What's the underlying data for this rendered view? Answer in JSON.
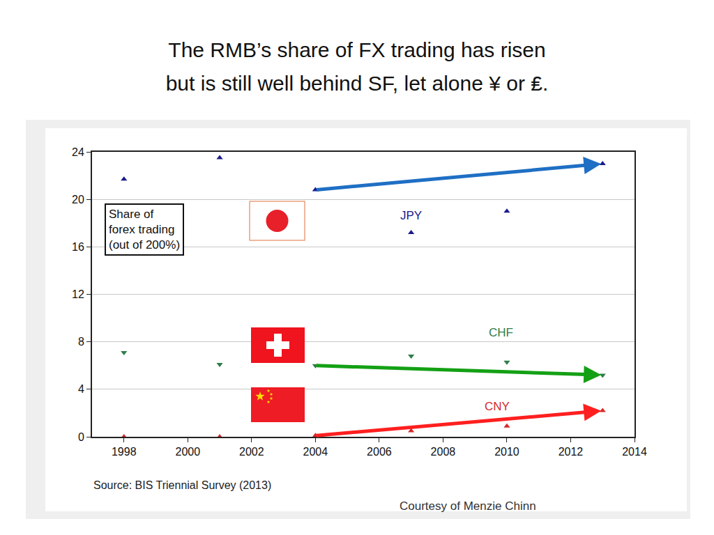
{
  "slide": {
    "title": [
      "The RMB’s share of FX trading has risen",
      "but is still well behind SF, let alone ¥ or ₤."
    ],
    "credit": "Courtesy of Menzie Chinn"
  },
  "chart_data": {
    "type": "scatter",
    "ylabel": "Share of\nforex trading\n(out of 200%)",
    "source": "Source: BIS Triennial Survey (2013)",
    "x": [
      1998,
      2001,
      2004,
      2007,
      2010,
      2013
    ],
    "series": [
      {
        "name": "JPY",
        "color": "#1a1a8c",
        "marker": "triangle-up",
        "values": [
          21.7,
          23.5,
          20.8,
          17.2,
          19.0,
          23.0
        ]
      },
      {
        "name": "CHF",
        "color": "#2e7d4a",
        "marker": "triangle-down",
        "values": [
          7.1,
          6.1,
          6.0,
          6.8,
          6.3,
          5.2
        ]
      },
      {
        "name": "CNY",
        "color": "#d42a2a",
        "marker": "triangle-up",
        "values": [
          0.0,
          0.0,
          0.1,
          0.5,
          0.9,
          2.2
        ]
      }
    ],
    "xlim": [
      1997,
      2014
    ],
    "xticks": [
      1998,
      2000,
      2002,
      2004,
      2006,
      2008,
      2010,
      2012,
      2014
    ],
    "ylim": [
      0,
      24
    ],
    "yticks": [
      0,
      4,
      8,
      12,
      16,
      20,
      24
    ],
    "grid": true
  }
}
